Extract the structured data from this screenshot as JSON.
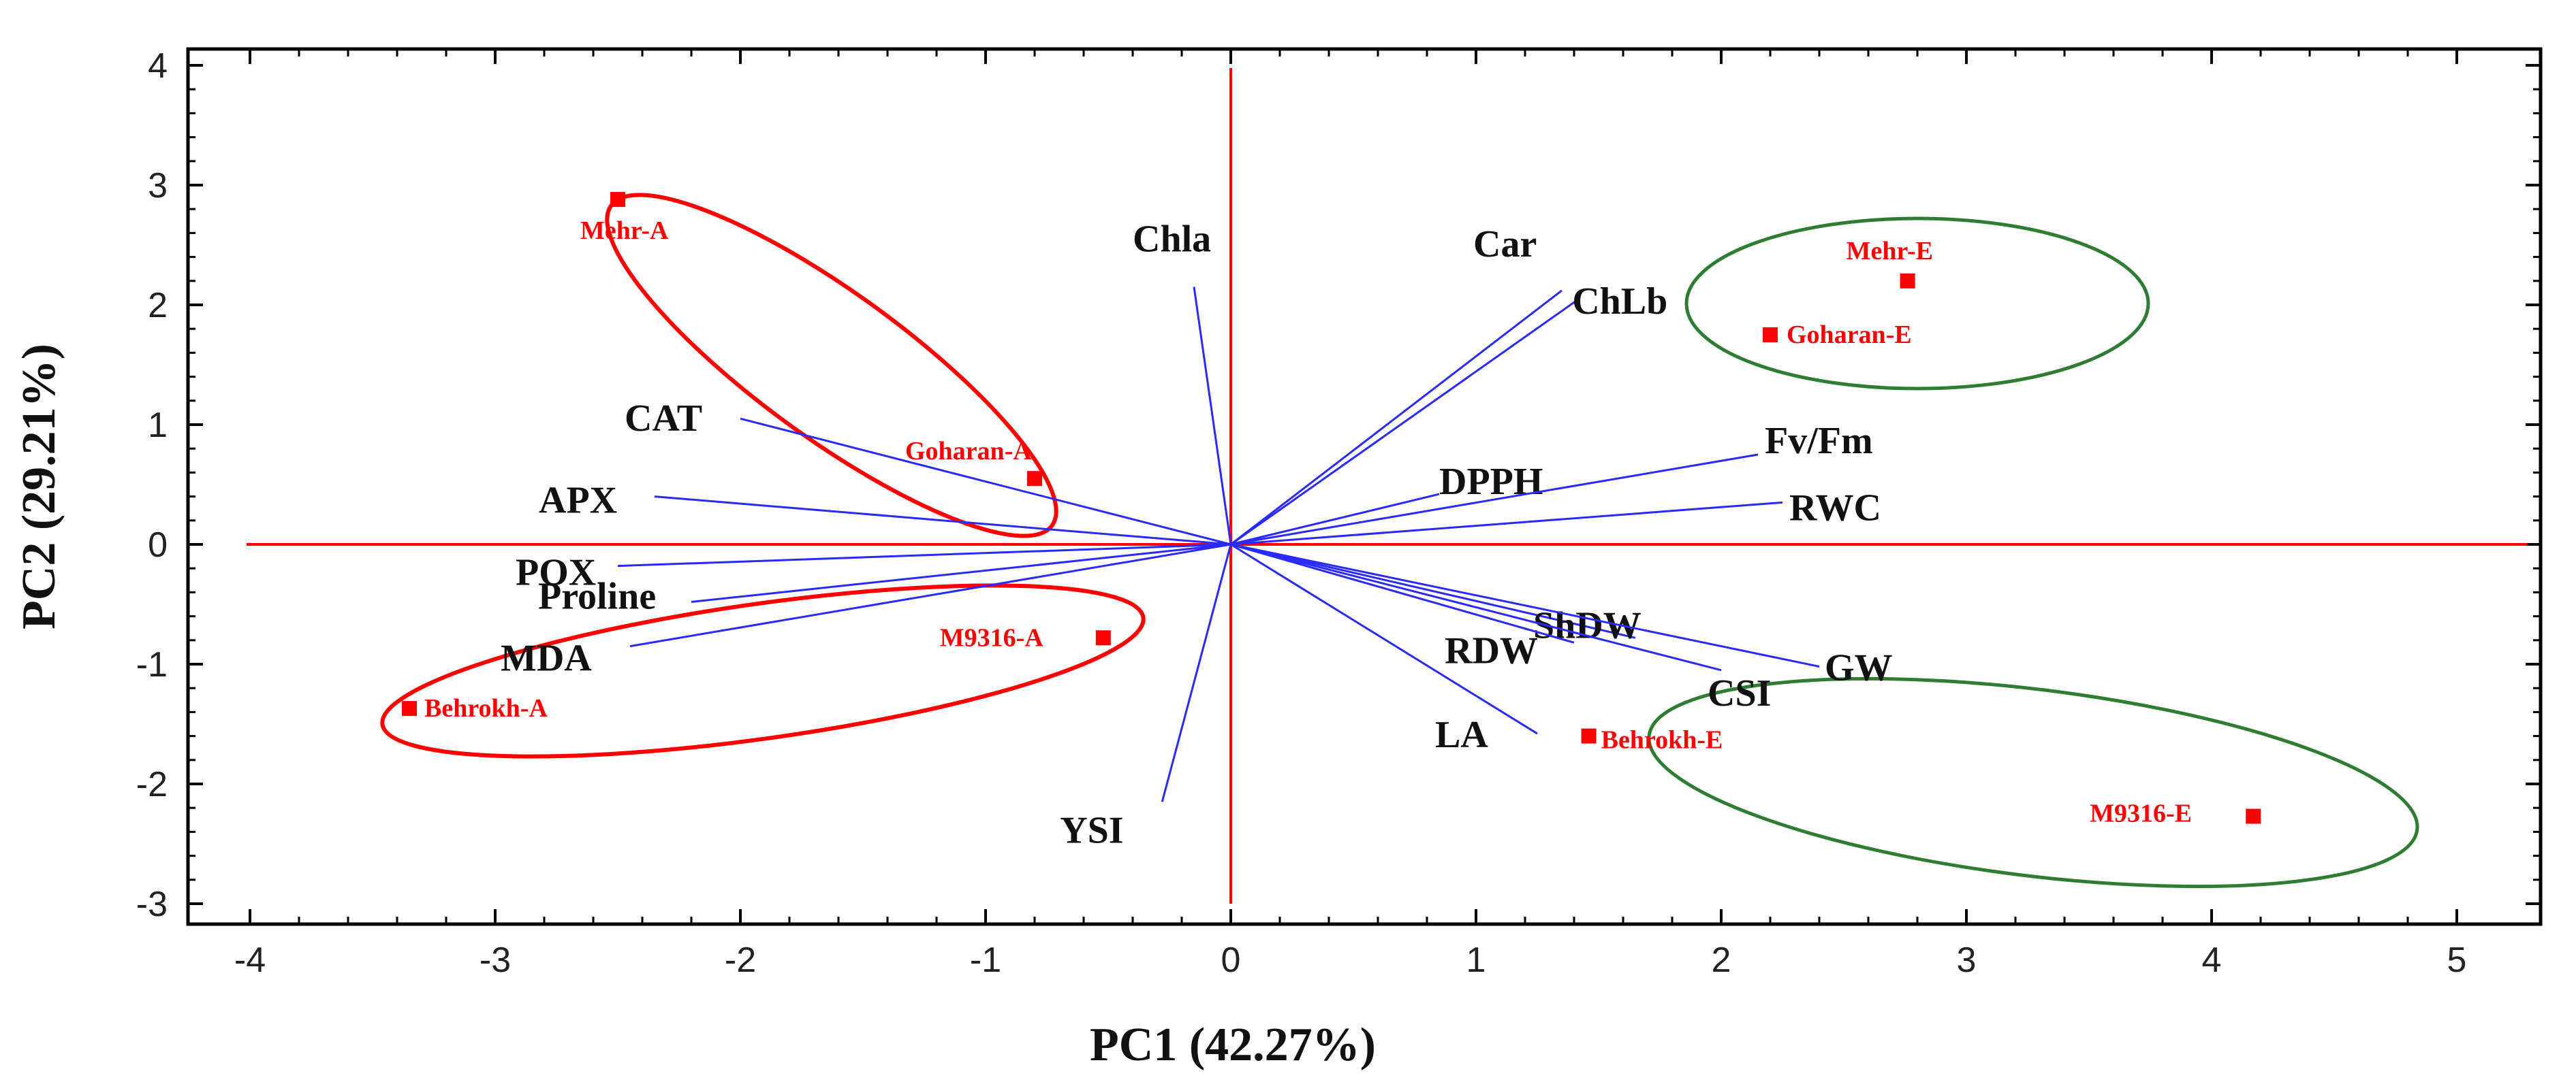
{
  "chart_data": {
    "type": "scatter",
    "subtype": "pca-biplot",
    "title": "",
    "xlabel": "PC1 (42.27%)",
    "ylabel": "PC2 (29.21%)",
    "xlim": [
      -4,
      5
    ],
    "ylim": [
      -3,
      4
    ],
    "xticks": [
      -4,
      -3,
      -2,
      -1,
      0,
      1,
      2,
      3,
      4,
      5
    ],
    "yticks": [
      -3,
      -2,
      -1,
      0,
      1,
      2,
      3,
      4
    ],
    "grid": false,
    "colors": {
      "axis": "#000000",
      "reference_lines": "#ff0000",
      "loadings": "#2a2aff",
      "group_a": "#ff0000",
      "group_e": "#2e7d32",
      "points": "#ff0000"
    },
    "observations": [
      {
        "name": "Mehr-A",
        "x": -2.5,
        "y": 2.88
      },
      {
        "name": "Goharan-A",
        "x": -0.8,
        "y": 0.55
      },
      {
        "name": "M9316-A",
        "x": -0.52,
        "y": -0.78
      },
      {
        "name": "Behrokh-A",
        "x": -3.35,
        "y": -1.37
      },
      {
        "name": "Mehr-E",
        "x": 2.76,
        "y": 2.2
      },
      {
        "name": "Goharan-E",
        "x": 2.2,
        "y": 1.75
      },
      {
        "name": "Behrokh-E",
        "x": 1.46,
        "y": -1.6
      },
      {
        "name": "M9316-E",
        "x": 4.17,
        "y": -2.27
      }
    ],
    "variables": [
      {
        "name": "Chla",
        "x": -0.15,
        "y": 2.15
      },
      {
        "name": "Car",
        "x": 1.35,
        "y": 2.12
      },
      {
        "name": "ChLb",
        "x": 1.42,
        "y": 2.05
      },
      {
        "name": "CAT",
        "x": -2.0,
        "y": 1.05
      },
      {
        "name": "APX",
        "x": -2.35,
        "y": 0.4
      },
      {
        "name": "DPPH",
        "x": 0.85,
        "y": 0.42
      },
      {
        "name": "Fv/Fm",
        "x": 2.15,
        "y": 0.75
      },
      {
        "name": "RWC",
        "x": 2.25,
        "y": 0.35
      },
      {
        "name": "POX",
        "x": -2.5,
        "y": -0.18
      },
      {
        "name": "Proline",
        "x": -2.2,
        "y": -0.48
      },
      {
        "name": "MDA",
        "x": -2.45,
        "y": -0.85
      },
      {
        "name": "ShDW",
        "x": 1.65,
        "y": -0.78
      },
      {
        "name": "GW",
        "x": 2.4,
        "y": -1.02
      },
      {
        "name": "CSI",
        "x": 2.0,
        "y": -1.05
      },
      {
        "name": "RDW",
        "x": 1.4,
        "y": -0.82
      },
      {
        "name": "LA",
        "x": 1.25,
        "y": -1.58
      },
      {
        "name": "YSI",
        "x": -0.28,
        "y": -2.15
      }
    ],
    "groups": [
      {
        "name": "Mehr-A, Goharan-A",
        "color": "red"
      },
      {
        "name": "M9316-A, Behrokh-A",
        "color": "red"
      },
      {
        "name": "Mehr-E, Goharan-E",
        "color": "green"
      },
      {
        "name": "Behrokh-E, M9316-E",
        "color": "green"
      }
    ]
  }
}
